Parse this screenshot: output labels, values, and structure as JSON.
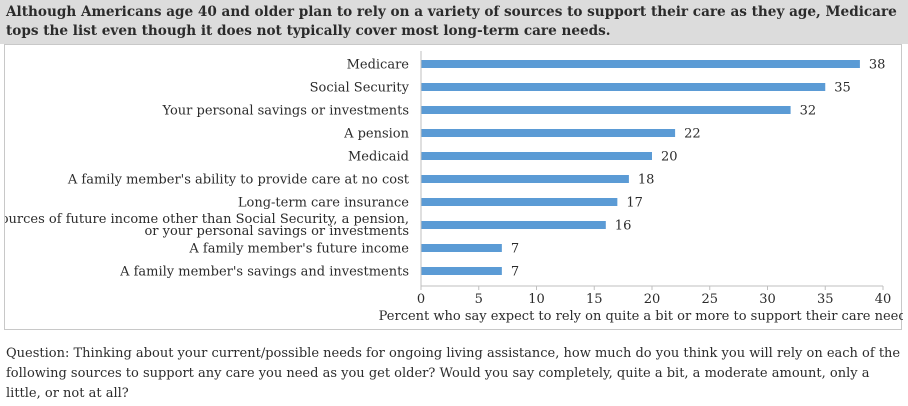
{
  "header": {
    "title": "Although Americans age 40 and older plan to rely on a variety of sources to support their care as they age, Medicare tops the list even though it does not typically cover most long-term care needs."
  },
  "chart_data": {
    "type": "bar",
    "orientation": "horizontal",
    "categories": [
      [
        "Medicare"
      ],
      [
        "Social Security"
      ],
      [
        "Your personal savings or investments"
      ],
      [
        "A pension"
      ],
      [
        "Medicaid"
      ],
      [
        "A family member's ability to provide care at no cost"
      ],
      [
        "Long-term care insurance"
      ],
      [
        "Sources of future income other than Social Security, a pension,",
        "or your personal savings or investments"
      ],
      [
        "A family member's future income"
      ],
      [
        "A family member's savings and investments"
      ]
    ],
    "values": [
      38,
      35,
      32,
      22,
      20,
      18,
      17,
      16,
      7,
      7
    ],
    "xlabel": "Percent who say expect to rely on quite a bit or more to support their care needs",
    "xlim": [
      0,
      40
    ],
    "xticks": [
      0,
      5,
      10,
      15,
      20,
      25,
      30,
      35,
      40
    ],
    "grid": false,
    "bar_color": "#5b9bd5",
    "data_labels": true
  },
  "footer": {
    "question": "Question: Thinking about your current/possible needs for ongoing living assistance, how much do you think you will rely on each of the following sources to support any care you need as you get older? Would you say completely, quite a bit, a moderate amount, only a little, or not at all?"
  }
}
